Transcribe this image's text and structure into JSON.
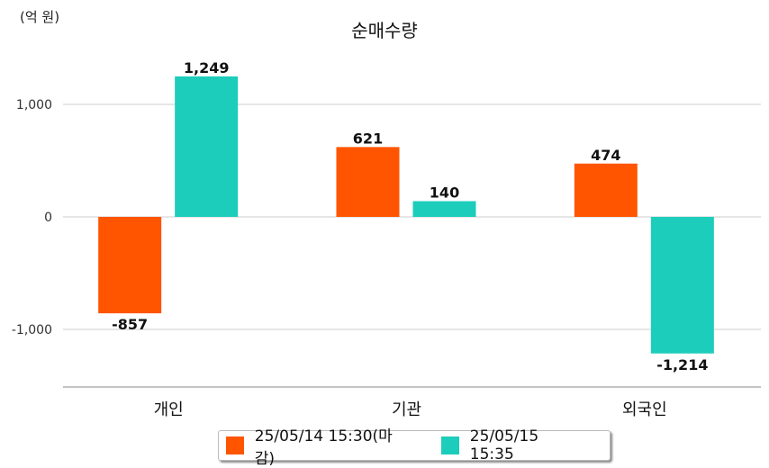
{
  "chart_data": {
    "type": "bar",
    "title": "순매수량",
    "unit_label": "(억 원)",
    "categories": [
      "개인",
      "기관",
      "외국인"
    ],
    "series": [
      {
        "name": "25/05/14 15:30(마감)",
        "color": "#ff5500",
        "values": [
          -857,
          621,
          474
        ]
      },
      {
        "name": "25/05/15 15:35",
        "color": "#1ccdbb",
        "values": [
          1249,
          140,
          -1214
        ]
      }
    ],
    "data_labels": [
      [
        "-857",
        "621",
        "474"
      ],
      [
        "1,249",
        "140",
        "-1,214"
      ]
    ],
    "yticks": [
      {
        "value": 1000,
        "label": "1,000"
      },
      {
        "value": 0,
        "label": "0"
      },
      {
        "value": -1000,
        "label": "-1,000"
      }
    ],
    "ylim": [
      -1520,
      1500
    ],
    "grid": true,
    "legend": "bottom"
  }
}
